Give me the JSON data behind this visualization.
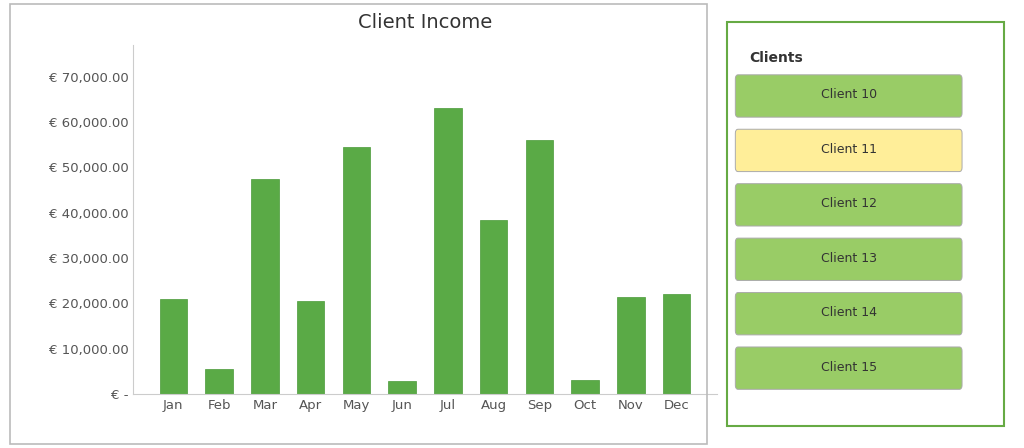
{
  "title": "Client Income",
  "months": [
    "Jan",
    "Feb",
    "Mar",
    "Apr",
    "May",
    "Jun",
    "Jul",
    "Aug",
    "Sep",
    "Oct",
    "Nov",
    "Dec"
  ],
  "values": [
    21000,
    5500,
    47500,
    20500,
    54500,
    3000,
    63000,
    38500,
    56000,
    3200,
    21500,
    22000
  ],
  "bar_color": "#5aaa46",
  "bar_edgecolor": "#4a9a38",
  "ylim": [
    0,
    77000
  ],
  "yticks": [
    0,
    10000,
    20000,
    30000,
    40000,
    50000,
    60000,
    70000
  ],
  "ytick_labels": [
    "€ -",
    "€ 10,000.00",
    "€ 20,000.00",
    "€ 30,000.00",
    "€ 40,000.00",
    "€ 50,000.00",
    "€ 60,000.00",
    "€ 70,000.00"
  ],
  "background_color": "#ffffff",
  "plot_bg_color": "#ffffff",
  "border_color": "#cccccc",
  "title_fontsize": 14,
  "tick_fontsize": 9.5,
  "bar_width": 0.6
}
